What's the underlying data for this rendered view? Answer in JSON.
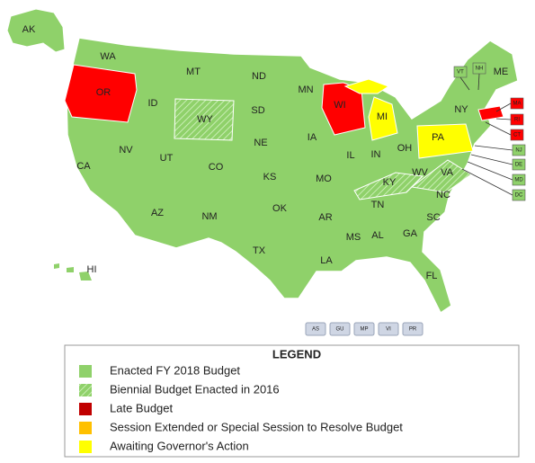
{
  "map": {
    "states": [
      {
        "label": "AK",
        "color": "#8fd16a"
      },
      {
        "label": "WA",
        "color": "#8fd16a"
      },
      {
        "label": "OR",
        "color": "#ff0000"
      },
      {
        "label": "ID",
        "color": "#8fd16a"
      },
      {
        "label": "MT",
        "color": "#8fd16a"
      },
      {
        "label": "ND",
        "color": "#8fd16a"
      },
      {
        "label": "MN",
        "color": "#8fd16a"
      },
      {
        "label": "WI",
        "color": "#ff0000"
      },
      {
        "label": "MI",
        "color": "#ffff00"
      },
      {
        "label": "NY",
        "color": "#8fd16a"
      },
      {
        "label": "VT",
        "color": "#8fd16a"
      },
      {
        "label": "NH",
        "color": "#8fd16a"
      },
      {
        "label": "ME",
        "color": "#8fd16a"
      },
      {
        "label": "MA",
        "color": "#ff0000"
      },
      {
        "label": "RI",
        "color": "#ff0000"
      },
      {
        "label": "CT",
        "color": "#ff0000"
      },
      {
        "label": "PA",
        "color": "#ffff00"
      },
      {
        "label": "NJ",
        "color": "#8fd16a"
      },
      {
        "label": "DE",
        "color": "#8fd16a"
      },
      {
        "label": "MD",
        "color": "#8fd16a"
      },
      {
        "label": "DC",
        "color": "#8fd16a"
      },
      {
        "label": "WY",
        "color": "#8fd16a",
        "pattern": "hatch"
      },
      {
        "label": "SD",
        "color": "#8fd16a"
      },
      {
        "label": "NV",
        "color": "#8fd16a"
      },
      {
        "label": "UT",
        "color": "#8fd16a"
      },
      {
        "label": "CO",
        "color": "#8fd16a"
      },
      {
        "label": "NE",
        "color": "#8fd16a"
      },
      {
        "label": "IA",
        "color": "#8fd16a"
      },
      {
        "label": "IL",
        "color": "#8fd16a"
      },
      {
        "label": "IN",
        "color": "#8fd16a"
      },
      {
        "label": "OH",
        "color": "#8fd16a"
      },
      {
        "label": "WV",
        "color": "#8fd16a"
      },
      {
        "label": "VA",
        "color": "#8fd16a",
        "pattern": "hatch"
      },
      {
        "label": "KY",
        "color": "#8fd16a",
        "pattern": "hatch"
      },
      {
        "label": "CA",
        "color": "#8fd16a"
      },
      {
        "label": "KS",
        "color": "#8fd16a"
      },
      {
        "label": "MO",
        "color": "#8fd16a"
      },
      {
        "label": "TN",
        "color": "#8fd16a"
      },
      {
        "label": "NC",
        "color": "#8fd16a"
      },
      {
        "label": "AZ",
        "color": "#8fd16a"
      },
      {
        "label": "NM",
        "color": "#8fd16a"
      },
      {
        "label": "OK",
        "color": "#8fd16a"
      },
      {
        "label": "AR",
        "color": "#8fd16a"
      },
      {
        "label": "SC",
        "color": "#8fd16a"
      },
      {
        "label": "TX",
        "color": "#8fd16a"
      },
      {
        "label": "MS",
        "color": "#8fd16a"
      },
      {
        "label": "AL",
        "color": "#8fd16a"
      },
      {
        "label": "GA",
        "color": "#8fd16a"
      },
      {
        "label": "LA",
        "color": "#8fd16a"
      },
      {
        "label": "FL",
        "color": "#8fd16a"
      },
      {
        "label": "HI",
        "color": "#8fd16a"
      }
    ],
    "territories": [
      "AS",
      "GU",
      "MP",
      "VI",
      "PR"
    ]
  },
  "legend": {
    "title": "LEGEND",
    "items": [
      {
        "label": "Enacted FY 2018 Budget",
        "color": "#8fd16a"
      },
      {
        "label": "Biennial Budget Enacted in 2016",
        "color": "#8fd16a",
        "pattern": "hatch"
      },
      {
        "label": "Late Budget",
        "color": "#c00000"
      },
      {
        "label": "Session Extended or Special Session to Resolve Budget",
        "color": "#ffc000"
      },
      {
        "label": "Awaiting Governor's Action",
        "color": "#ffff00"
      }
    ]
  }
}
